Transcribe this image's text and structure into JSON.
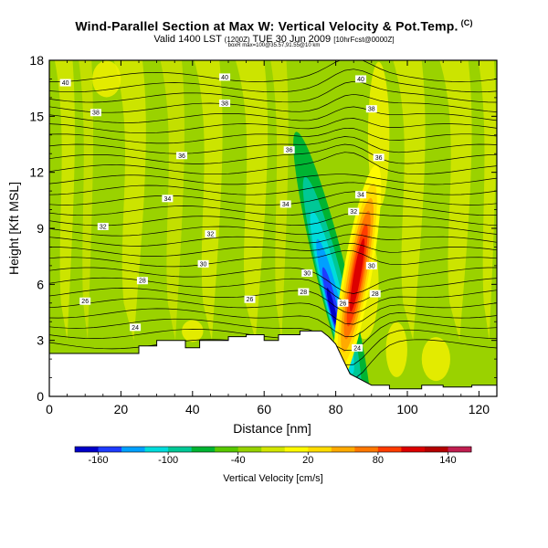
{
  "title": {
    "main": "Wind-Parallel Section at Max W: Vertical Velocity & Pot.Temp.",
    "copyright": "(C)",
    "valid_prefix": "Valid 1400 LST",
    "valid_utc": "(1200Z)",
    "valid_date": "TUE 30 Jun 2009",
    "valid_suffix": "[10hrFcst@0000Z]",
    "subtitle2": "boxR max=100@35.57,91.55@10 km"
  },
  "chart_data": {
    "type": "heatmap",
    "subtype": "cross-section with contours",
    "xlabel": "Distance [nm]",
    "ylabel": "Height [Kft MSL]",
    "xlim": [
      0,
      125
    ],
    "ylim": [
      0,
      18
    ],
    "x_ticks": [
      0,
      20,
      40,
      60,
      80,
      100,
      120
    ],
    "y_ticks": [
      0,
      3,
      6,
      9,
      12,
      15,
      18
    ],
    "colorbar": {
      "label": "Vertical Velocity [cm/s]",
      "vmin": -180,
      "vmax": 160,
      "tick_values": [
        -160,
        -100,
        -40,
        20,
        80,
        140
      ],
      "colors": [
        "#0000c8",
        "#1e3cff",
        "#00a0ff",
        "#00dcdc",
        "#00c896",
        "#00b432",
        "#58c800",
        "#96d200",
        "#d2e600",
        "#fffa00",
        "#ffdc00",
        "#ffaa00",
        "#ff7800",
        "#ff3c00",
        "#dc0000",
        "#b40000",
        "#c01e50"
      ]
    },
    "terrain": [
      [
        0,
        2.3
      ],
      [
        25,
        2.3
      ],
      [
        25,
        2.7
      ],
      [
        30,
        2.7
      ],
      [
        30,
        3.0
      ],
      [
        38,
        3.0
      ],
      [
        38,
        2.6
      ],
      [
        42,
        2.6
      ],
      [
        42,
        3.0
      ],
      [
        50,
        3.0
      ],
      [
        50,
        3.2
      ],
      [
        55,
        3.2
      ],
      [
        55,
        3.3
      ],
      [
        60,
        3.3
      ],
      [
        60,
        3.0
      ],
      [
        64,
        3.0
      ],
      [
        64,
        3.3
      ],
      [
        70,
        3.3
      ],
      [
        70,
        3.5
      ],
      [
        76,
        3.5
      ],
      [
        78,
        3.2
      ],
      [
        80,
        2.8
      ],
      [
        82,
        2.0
      ],
      [
        84,
        1.2
      ],
      [
        86,
        1.0
      ],
      [
        90,
        0.6
      ],
      [
        95,
        0.6
      ],
      [
        95,
        0.4
      ],
      [
        104,
        0.4
      ],
      [
        104,
        0.6
      ],
      [
        110,
        0.6
      ],
      [
        110,
        0.5
      ],
      [
        118,
        0.5
      ],
      [
        118,
        0.6
      ],
      [
        125,
        0.6
      ]
    ],
    "velocity_features": [
      {
        "kind": "downdraft",
        "x": 79,
        "y": 4.5,
        "peak": -160
      },
      {
        "kind": "updraft",
        "x": 86,
        "y": 6.5,
        "peak": 150
      }
    ],
    "contour_labels": [
      {
        "text": "40",
        "x": 4.5,
        "y": 16.8
      },
      {
        "text": "40",
        "x": 49,
        "y": 17.1
      },
      {
        "text": "40",
        "x": 87,
        "y": 17.0
      },
      {
        "text": "38",
        "x": 13,
        "y": 15.2
      },
      {
        "text": "38",
        "x": 49,
        "y": 15.7
      },
      {
        "text": "38",
        "x": 90,
        "y": 15.4
      },
      {
        "text": "36",
        "x": 37,
        "y": 12.9
      },
      {
        "text": "36",
        "x": 67,
        "y": 13.2
      },
      {
        "text": "36",
        "x": 92,
        "y": 12.8
      },
      {
        "text": "34",
        "x": 33,
        "y": 10.6
      },
      {
        "text": "34",
        "x": 66,
        "y": 10.3
      },
      {
        "text": "34",
        "x": 87,
        "y": 10.8
      },
      {
        "text": "32",
        "x": 15,
        "y": 9.1
      },
      {
        "text": "32",
        "x": 45,
        "y": 8.7
      },
      {
        "text": "32",
        "x": 85,
        "y": 9.9
      },
      {
        "text": "30",
        "x": 43,
        "y": 7.1
      },
      {
        "text": "30",
        "x": 72,
        "y": 6.6
      },
      {
        "text": "30",
        "x": 90,
        "y": 7.0
      },
      {
        "text": "28",
        "x": 26,
        "y": 6.2
      },
      {
        "text": "28",
        "x": 71,
        "y": 5.6
      },
      {
        "text": "28",
        "x": 91,
        "y": 5.5
      },
      {
        "text": "26",
        "x": 10,
        "y": 5.1
      },
      {
        "text": "26",
        "x": 56,
        "y": 5.2
      },
      {
        "text": "26",
        "x": 82,
        "y": 5.0
      },
      {
        "text": "24",
        "x": 24,
        "y": 3.7
      },
      {
        "text": "24",
        "x": 86,
        "y": 2.6
      }
    ]
  }
}
